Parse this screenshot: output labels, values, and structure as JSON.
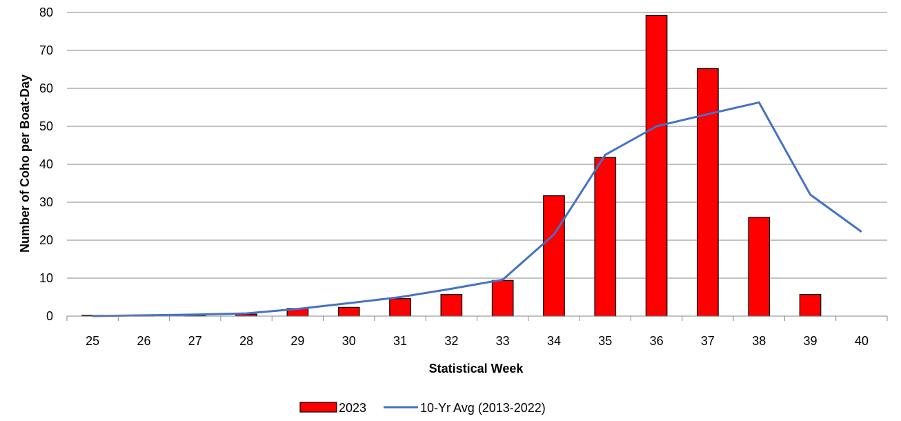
{
  "chart_data": {
    "type": "bar",
    "title": "",
    "xlabel": "Statistical Week",
    "ylabel": "Number of Coho per Boat-Day",
    "categories": [
      "25",
      "26",
      "27",
      "28",
      "29",
      "30",
      "31",
      "32",
      "33",
      "34",
      "35",
      "36",
      "37",
      "38",
      "39",
      "40"
    ],
    "ylim": [
      0,
      80
    ],
    "yticks": [
      0,
      10,
      20,
      30,
      40,
      50,
      60,
      70,
      80
    ],
    "grid": true,
    "legend_position": "bottom",
    "series": [
      {
        "name": "2023",
        "type": "bar",
        "color": "#ff0000",
        "values": [
          0.2,
          0.1,
          0.1,
          0.5,
          2.0,
          2.3,
          4.6,
          5.7,
          9.4,
          31.7,
          41.8,
          79.2,
          65.2,
          26.0,
          5.7,
          null
        ]
      },
      {
        "name": "10-Yr Avg (2013-2022)",
        "type": "line",
        "color": "#4472c4",
        "values": [
          0.0,
          0.2,
          0.4,
          0.7,
          1.9,
          3.4,
          5.0,
          7.2,
          9.6,
          21.5,
          42.5,
          50.0,
          53.2,
          56.3,
          32.0,
          22.2
        ]
      }
    ]
  }
}
